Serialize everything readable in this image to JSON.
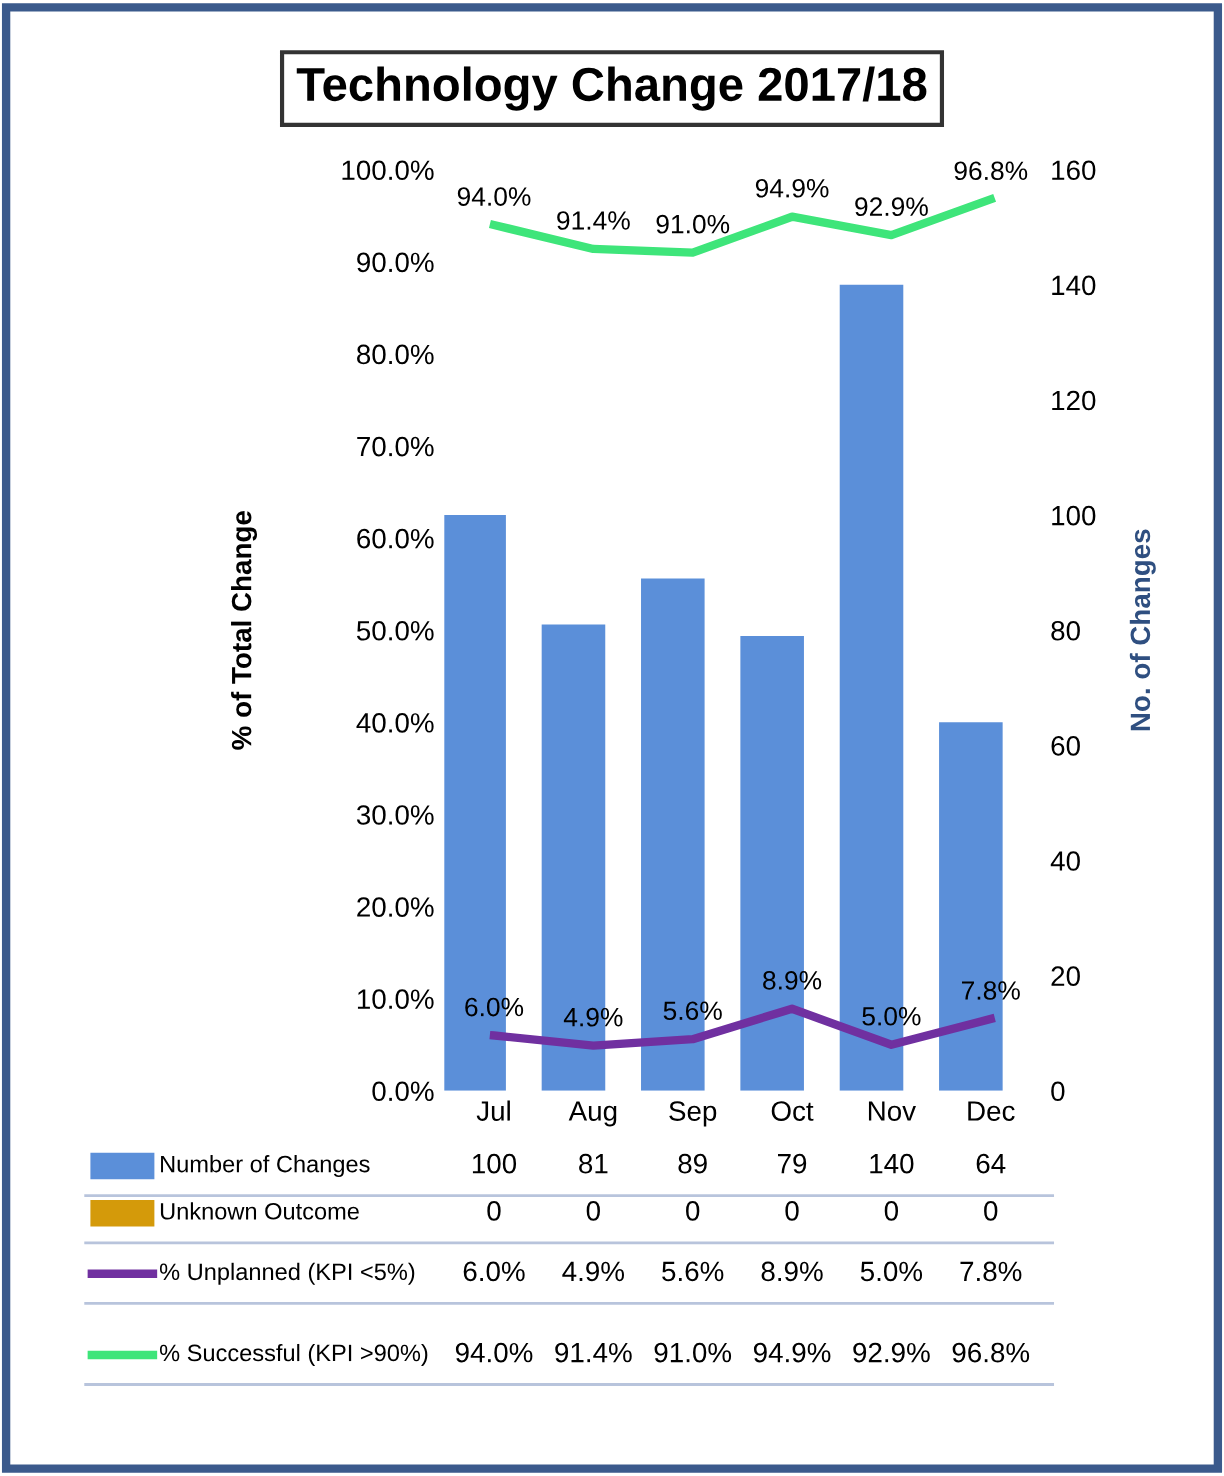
{
  "chart_data": {
    "type": "bar",
    "title": "Technology Change 2017/18",
    "ylabel": "% of Total Change",
    "y2label": "No. of Changes",
    "categories": [
      "Jul",
      "Aug",
      "Sep",
      "Oct",
      "Nov",
      "Dec"
    ],
    "series": [
      {
        "name": "Number of Changes",
        "axis": "y2",
        "color": "#5b8fd9",
        "values": [
          100,
          81,
          89,
          79,
          140,
          64
        ],
        "value_labels": [
          "100",
          "81",
          "89",
          "79",
          "140",
          "64"
        ]
      },
      {
        "name": "Unknown Outcome",
        "axis": "y2",
        "color": "#d49a0a",
        "values": [
          0,
          0,
          0,
          0,
          0,
          0
        ],
        "value_labels": [
          "0",
          "0",
          "0",
          "0",
          "0",
          "0"
        ]
      },
      {
        "name": "% Unplanned (KPI <5%)",
        "type": "line",
        "axis": "y",
        "color": "#7030a0",
        "values": [
          6.0,
          4.9,
          5.6,
          8.9,
          5.0,
          7.8
        ],
        "value_labels": [
          "6.0%",
          "4.9%",
          "5.6%",
          "8.9%",
          "5.0%",
          "7.8%"
        ]
      },
      {
        "name": "% Successful (KPI >90%)",
        "type": "line",
        "axis": "y",
        "color": "#3ee57a",
        "values": [
          94.0,
          91.4,
          91.0,
          94.9,
          92.9,
          96.8
        ],
        "value_labels": [
          "94.0%",
          "91.4%",
          "91.0%",
          "94.9%",
          "92.9%",
          "96.8%"
        ]
      }
    ],
    "ylim": [
      0,
      100
    ],
    "yticks": [
      {
        "value": 0,
        "label": "0.0%"
      },
      {
        "value": 10,
        "label": "10.0%"
      },
      {
        "value": 20,
        "label": "20.0%"
      },
      {
        "value": 30,
        "label": "30.0%"
      },
      {
        "value": 40,
        "label": "40.0%"
      },
      {
        "value": 50,
        "label": "50.0%"
      },
      {
        "value": 60,
        "label": "60.0%"
      },
      {
        "value": 70,
        "label": "70.0%"
      },
      {
        "value": 80,
        "label": "80.0%"
      },
      {
        "value": 90,
        "label": "90.0%"
      },
      {
        "value": 100,
        "label": "100.0%"
      }
    ],
    "y2lim": [
      0,
      160
    ],
    "y2ticks": [
      0,
      20,
      40,
      60,
      80,
      100,
      120,
      140,
      160
    ],
    "legend": "bottom",
    "grid": false,
    "marker": "none",
    "line_style": "solid"
  }
}
